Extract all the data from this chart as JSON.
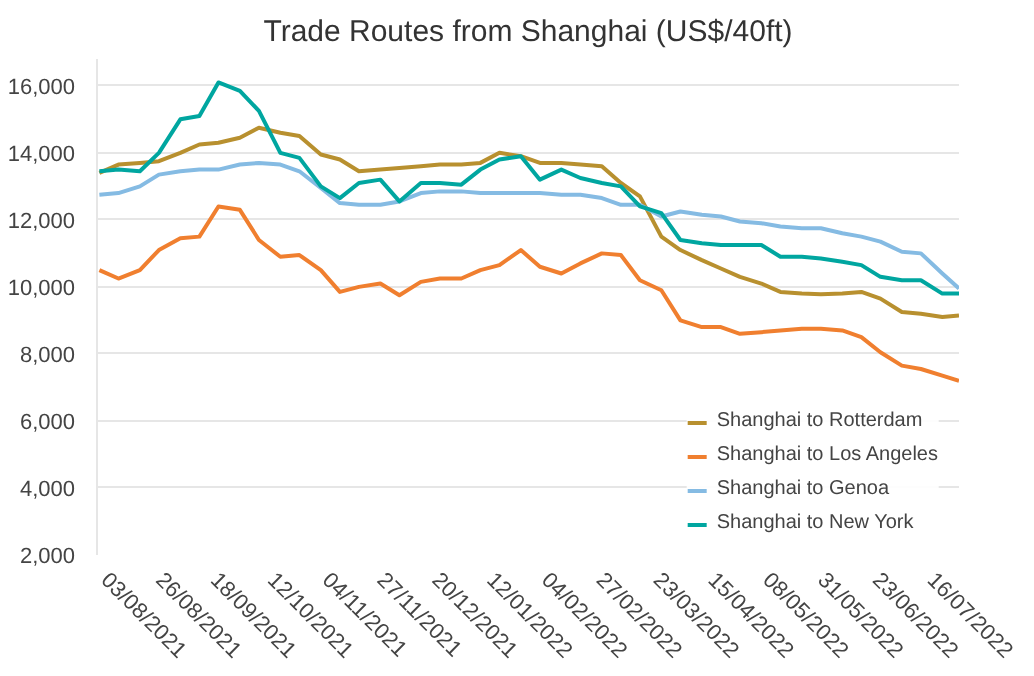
{
  "chart_data": {
    "type": "line",
    "title": "Trade Routes from Shanghai (US$/40ft)",
    "x": [
      "2021-08-01",
      "2021-08-09",
      "2021-08-18",
      "2021-08-26",
      "2021-09-04",
      "2021-09-12",
      "2021-09-20",
      "2021-09-29",
      "2021-10-07",
      "2021-10-16",
      "2021-10-24",
      "2021-11-02",
      "2021-11-10",
      "2021-11-18",
      "2021-11-27",
      "2021-12-05",
      "2021-12-14",
      "2021-12-22",
      "2021-12-31",
      "2022-01-08",
      "2022-01-16",
      "2022-01-25",
      "2022-02-02",
      "2022-02-11",
      "2022-02-19",
      "2022-02-28",
      "2022-03-08",
      "2022-03-16",
      "2022-03-25",
      "2022-04-02",
      "2022-04-11",
      "2022-04-19",
      "2022-04-27",
      "2022-05-06",
      "2022-05-14",
      "2022-05-23",
      "2022-05-31",
      "2022-06-09",
      "2022-06-17",
      "2022-06-25",
      "2022-07-04",
      "2022-07-12",
      "2022-07-21",
      "2022-07-28"
    ],
    "series": [
      {
        "name": "Shanghai to Rotterdam",
        "color": "#b8902f",
        "values": [
          13400,
          13650,
          13700,
          13750,
          14000,
          14250,
          14300,
          14450,
          14750,
          14600,
          14500,
          13950,
          13800,
          13450,
          13500,
          13550,
          13600,
          13650,
          13650,
          13700,
          14000,
          13900,
          13700,
          13700,
          13650,
          13600,
          13100,
          12700,
          11500,
          11100,
          10800,
          10550,
          10300,
          10100,
          9850,
          9800,
          9780,
          9800,
          9850,
          9650,
          9250,
          9200,
          9100,
          9150
        ]
      },
      {
        "name": "Shanghai to Los Angeles",
        "color": "#f07f2f",
        "values": [
          10500,
          10250,
          10500,
          11100,
          11450,
          11500,
          12400,
          12300,
          11400,
          10900,
          10950,
          10500,
          9850,
          10000,
          10100,
          9750,
          10150,
          10250,
          10250,
          10500,
          10650,
          11100,
          10600,
          10400,
          10700,
          11000,
          10950,
          10200,
          9900,
          9000,
          8800,
          8800,
          8600,
          8650,
          8700,
          8750,
          8750,
          8700,
          8500,
          8050,
          7650,
          7550,
          7350,
          7200
        ]
      },
      {
        "name": "Shanghai to Genoa",
        "color": "#85bbe3",
        "values": [
          12750,
          12800,
          13000,
          13350,
          13450,
          13500,
          13500,
          13650,
          13700,
          13650,
          13450,
          12950,
          12500,
          12450,
          12450,
          12550,
          12800,
          12850,
          12850,
          12800,
          12800,
          12800,
          12800,
          12750,
          12750,
          12650,
          12450,
          12450,
          12100,
          12250,
          12150,
          12100,
          11950,
          11900,
          11800,
          11750,
          11750,
          11600,
          11500,
          11350,
          11050,
          11000,
          10400,
          9950
        ]
      },
      {
        "name": "Shanghai to New York",
        "color": "#00a6a0",
        "values": [
          13450,
          13500,
          13450,
          14000,
          15000,
          15100,
          16100,
          15850,
          15250,
          14000,
          13850,
          13000,
          12650,
          13100,
          13200,
          12550,
          13100,
          13100,
          13050,
          13500,
          13800,
          13900,
          13200,
          13500,
          13250,
          13100,
          13000,
          12400,
          12200,
          11400,
          11300,
          11250,
          11250,
          11250,
          10900,
          10900,
          10850,
          10750,
          10650,
          10300,
          10200,
          10200,
          9800,
          9800
        ]
      }
    ],
    "xlim": [
      "2021-07-31",
      "2022-07-28"
    ],
    "xticks": [
      {
        "value": "2021-08-03",
        "label": "03/08/2021"
      },
      {
        "value": "2021-08-26",
        "label": "26/08/2021"
      },
      {
        "value": "2021-09-18",
        "label": "18/09/2021"
      },
      {
        "value": "2021-10-12",
        "label": "12/10/2021"
      },
      {
        "value": "2021-11-04",
        "label": "04/11/2021"
      },
      {
        "value": "2021-11-27",
        "label": "27/11/2021"
      },
      {
        "value": "2021-12-20",
        "label": "20/12/2021"
      },
      {
        "value": "2022-01-12",
        "label": "12/01/2022"
      },
      {
        "value": "2022-02-04",
        "label": "04/02/2022"
      },
      {
        "value": "2022-02-27",
        "label": "27/02/2022"
      },
      {
        "value": "2022-03-23",
        "label": "23/03/2022"
      },
      {
        "value": "2022-04-15",
        "label": "15/04/2022"
      },
      {
        "value": "2022-05-08",
        "label": "08/05/2022"
      },
      {
        "value": "2022-05-31",
        "label": "31/05/2022"
      },
      {
        "value": "2022-06-23",
        "label": "23/06/2022"
      },
      {
        "value": "2022-07-16",
        "label": "16/07/2022"
      }
    ],
    "ylim": [
      2000,
      16800
    ],
    "yticks": [
      {
        "value": 2000,
        "label": "2,000"
      },
      {
        "value": 4000,
        "label": "4,000"
      },
      {
        "value": 6000,
        "label": "6,000"
      },
      {
        "value": 8000,
        "label": "8,000"
      },
      {
        "value": 10000,
        "label": "10,000"
      },
      {
        "value": 12000,
        "label": "12,000"
      },
      {
        "value": 14000,
        "label": "14,000"
      },
      {
        "value": 16000,
        "label": "16,000"
      }
    ],
    "grid": "y",
    "legend": "bottom right",
    "marker": "none",
    "line_style": "solid"
  }
}
